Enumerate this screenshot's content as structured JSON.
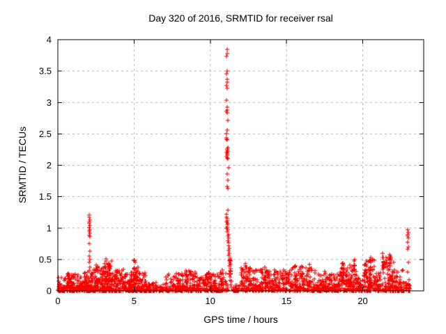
{
  "figure": {
    "title": "Day 320 of 2016, SRMTID for receiver rsal",
    "xlabel": "GPS time / hours",
    "ylabel": "SRMTID / TECUs"
  },
  "chart_data": {
    "type": "scatter",
    "title": "Day 320 of 2016, SRMTID for receiver rsal",
    "xlabel": "GPS time / hours",
    "ylabel": "SRMTID / TECUs",
    "xlim": [
      0,
      24
    ],
    "ylim": [
      0,
      4
    ],
    "xticks": [
      {
        "v": 0,
        "label": "0"
      },
      {
        "v": 5,
        "label": "5"
      },
      {
        "v": 10,
        "label": "10"
      },
      {
        "v": 15,
        "label": "15"
      },
      {
        "v": 20,
        "label": "20"
      }
    ],
    "yticks": [
      {
        "v": 0,
        "label": "0"
      },
      {
        "v": 0.5,
        "label": "0.5"
      },
      {
        "v": 1,
        "label": "1"
      },
      {
        "v": 1.5,
        "label": "1.5"
      },
      {
        "v": 2,
        "label": "2"
      },
      {
        "v": 2.5,
        "label": "2.5"
      },
      {
        "v": 3,
        "label": "3"
      },
      {
        "v": 3.5,
        "label": "3.5"
      },
      {
        "v": 4,
        "label": "4"
      }
    ],
    "grid": true,
    "grid_color": "#b5b5b5",
    "border_color": "#000000",
    "marker": "plus",
    "marker_color": "#ff0000",
    "legend": "none",
    "series_name": "SRMTID",
    "data_end_hour": 23.1,
    "baseline_segments": [
      {
        "x0": 0.0,
        "x1": 0.6,
        "ymax": 0.22,
        "n": 70
      },
      {
        "x0": 0.6,
        "x1": 1.2,
        "ymax": 0.28,
        "n": 80
      },
      {
        "x0": 1.2,
        "x1": 1.9,
        "ymax": 0.3,
        "n": 90
      },
      {
        "x0": 1.9,
        "x1": 2.35,
        "ymax": 0.35,
        "n": 70
      },
      {
        "x0": 2.35,
        "x1": 2.95,
        "ymax": 0.42,
        "n": 85
      },
      {
        "x0": 2.95,
        "x1": 3.55,
        "ymax": 0.5,
        "n": 95
      },
      {
        "x0": 3.55,
        "x1": 4.35,
        "ymax": 0.38,
        "n": 95
      },
      {
        "x0": 4.35,
        "x1": 4.95,
        "ymax": 0.3,
        "n": 70
      },
      {
        "x0": 4.95,
        "x1": 5.25,
        "ymax": 0.4,
        "n": 45
      },
      {
        "x0": 5.25,
        "x1": 5.75,
        "ymax": 0.32,
        "n": 55
      },
      {
        "x0": 5.75,
        "x1": 6.45,
        "ymax": 0.14,
        "n": 50
      },
      {
        "x0": 6.45,
        "x1": 7.05,
        "ymax": 0.1,
        "n": 35
      },
      {
        "x0": 7.05,
        "x1": 8.05,
        "ymax": 0.28,
        "n": 90
      },
      {
        "x0": 8.05,
        "x1": 9.05,
        "ymax": 0.32,
        "n": 95
      },
      {
        "x0": 9.05,
        "x1": 9.65,
        "ymax": 0.22,
        "n": 50
      },
      {
        "x0": 9.65,
        "x1": 10.65,
        "ymax": 0.3,
        "n": 110
      },
      {
        "x0": 10.65,
        "x1": 11.15,
        "ymax": 0.35,
        "n": 45
      },
      {
        "x0": 11.45,
        "x1": 12.0,
        "ymax": 0.1,
        "n": 25
      },
      {
        "x0": 12.0,
        "x1": 13.05,
        "ymax": 0.38,
        "n": 100
      },
      {
        "x0": 13.05,
        "x1": 14.25,
        "ymax": 0.36,
        "n": 110
      },
      {
        "x0": 14.25,
        "x1": 15.35,
        "ymax": 0.32,
        "n": 95
      },
      {
        "x0": 15.35,
        "x1": 16.75,
        "ymax": 0.4,
        "n": 120
      },
      {
        "x0": 16.75,
        "x1": 17.65,
        "ymax": 0.32,
        "n": 80
      },
      {
        "x0": 17.65,
        "x1": 18.45,
        "ymax": 0.28,
        "n": 70
      },
      {
        "x0": 18.45,
        "x1": 19.65,
        "ymax": 0.45,
        "n": 110
      },
      {
        "x0": 19.65,
        "x1": 20.05,
        "ymax": 0.22,
        "n": 30
      },
      {
        "x0": 20.05,
        "x1": 20.75,
        "ymax": 0.5,
        "n": 75
      },
      {
        "x0": 20.75,
        "x1": 21.25,
        "ymax": 0.32,
        "n": 50
      },
      {
        "x0": 21.25,
        "x1": 22.05,
        "ymax": 0.55,
        "n": 85
      },
      {
        "x0": 22.05,
        "x1": 22.65,
        "ymax": 0.35,
        "n": 55
      },
      {
        "x0": 22.65,
        "x1": 23.1,
        "ymax": 0.15,
        "n": 25
      }
    ],
    "streaks": [
      {
        "x": 0.75,
        "ytop": 0.3,
        "n": 7
      },
      {
        "x": 2.55,
        "ytop": 0.4,
        "n": 8
      },
      {
        "x": 3.15,
        "ytop": 0.55,
        "n": 12
      },
      {
        "x": 3.35,
        "ytop": 0.46,
        "n": 10
      },
      {
        "x": 5.02,
        "ytop": 0.5,
        "n": 14
      },
      {
        "x": 8.45,
        "ytop": 0.34,
        "n": 8
      },
      {
        "x": 9.85,
        "ytop": 0.3,
        "n": 7
      },
      {
        "x": 11.3,
        "ytop": 0.55,
        "n": 10
      },
      {
        "x": 12.35,
        "ytop": 0.45,
        "n": 10
      },
      {
        "x": 12.6,
        "ytop": 0.4,
        "n": 8
      },
      {
        "x": 13.6,
        "ytop": 0.38,
        "n": 8
      },
      {
        "x": 14.75,
        "ytop": 0.36,
        "n": 8
      },
      {
        "x": 15.6,
        "ytop": 0.42,
        "n": 9
      },
      {
        "x": 16.5,
        "ytop": 0.42,
        "n": 9
      },
      {
        "x": 18.7,
        "ytop": 0.46,
        "n": 10
      },
      {
        "x": 19.45,
        "ytop": 0.52,
        "n": 12
      },
      {
        "x": 20.15,
        "ytop": 0.48,
        "n": 10
      },
      {
        "x": 20.5,
        "ytop": 0.55,
        "n": 12
      },
      {
        "x": 21.35,
        "ytop": 0.62,
        "n": 12
      },
      {
        "x": 21.8,
        "ytop": 0.58,
        "n": 10
      }
    ],
    "spike_points": [
      [
        11.12,
        3.85
      ],
      [
        11.1,
        3.78
      ],
      [
        11.08,
        3.73
      ],
      [
        11.1,
        3.5
      ],
      [
        11.08,
        3.46
      ],
      [
        11.12,
        3.37
      ],
      [
        11.1,
        3.32
      ],
      [
        11.08,
        3.27
      ],
      [
        11.1,
        3.22
      ],
      [
        11.06,
        3.04
      ],
      [
        11.1,
        2.92
      ],
      [
        11.12,
        2.88
      ],
      [
        11.08,
        2.86
      ],
      [
        11.1,
        2.84
      ],
      [
        11.14,
        2.72
      ],
      [
        11.1,
        2.56
      ],
      [
        11.06,
        2.5
      ],
      [
        11.08,
        2.44
      ],
      [
        11.06,
        2.42
      ],
      [
        11.1,
        2.4
      ],
      [
        11.16,
        2.28
      ],
      [
        11.12,
        2.26
      ],
      [
        11.1,
        2.24
      ],
      [
        11.14,
        2.22
      ],
      [
        11.08,
        2.2
      ],
      [
        11.12,
        2.18
      ],
      [
        11.1,
        2.16
      ],
      [
        11.06,
        2.14
      ],
      [
        11.1,
        2.12
      ],
      [
        11.14,
        2.1
      ],
      [
        11.18,
        1.96
      ],
      [
        11.12,
        1.86
      ],
      [
        11.16,
        1.76
      ],
      [
        11.12,
        1.66
      ],
      [
        11.14,
        1.63
      ],
      [
        11.16,
        1.28
      ],
      [
        11.05,
        1.22
      ],
      [
        11.08,
        1.18
      ],
      [
        11.12,
        1.15
      ],
      [
        11.1,
        1.12
      ],
      [
        11.06,
        1.1
      ],
      [
        11.14,
        1.08
      ],
      [
        11.1,
        1.05
      ],
      [
        11.12,
        1.02
      ],
      [
        11.08,
        1.0
      ],
      [
        11.16,
        0.97
      ],
      [
        11.12,
        0.94
      ],
      [
        11.18,
        0.9
      ],
      [
        11.14,
        0.87
      ],
      [
        11.2,
        0.84
      ],
      [
        11.16,
        0.8
      ],
      [
        11.22,
        0.76
      ],
      [
        11.18,
        0.72
      ],
      [
        11.24,
        0.68
      ],
      [
        11.2,
        0.64
      ],
      [
        11.26,
        0.6
      ],
      [
        11.22,
        0.56
      ],
      [
        11.28,
        0.52
      ],
      [
        11.24,
        0.48
      ],
      [
        11.3,
        0.44
      ],
      [
        11.26,
        0.4
      ],
      [
        11.32,
        0.36
      ],
      [
        11.28,
        0.32
      ],
      [
        11.34,
        0.28
      ],
      [
        11.3,
        0.22
      ],
      [
        11.36,
        0.16
      ],
      [
        11.32,
        0.1
      ],
      [
        11.38,
        0.05
      ]
    ],
    "burst_2h_points": [
      [
        2.04,
        1.21
      ],
      [
        2.06,
        1.17
      ],
      [
        2.08,
        1.13
      ],
      [
        2.05,
        1.1
      ],
      [
        2.07,
        1.07
      ],
      [
        2.09,
        1.04
      ],
      [
        2.06,
        1.01
      ],
      [
        2.08,
        0.98
      ],
      [
        2.05,
        0.95
      ],
      [
        2.09,
        0.92
      ],
      [
        2.07,
        0.89
      ],
      [
        2.1,
        0.86
      ],
      [
        2.06,
        0.75
      ],
      [
        2.08,
        0.63
      ],
      [
        2.05,
        0.55
      ],
      [
        2.09,
        0.5
      ],
      [
        2.07,
        0.45
      ],
      [
        2.1,
        0.38
      ],
      [
        2.04,
        0.32
      ]
    ],
    "burst_23h_points": [
      [
        22.96,
        0.97
      ],
      [
        22.98,
        0.93
      ],
      [
        22.95,
        0.9
      ],
      [
        22.97,
        0.87
      ],
      [
        22.99,
        0.84
      ],
      [
        22.96,
        0.78
      ],
      [
        22.98,
        0.7
      ],
      [
        22.95,
        0.66
      ],
      [
        23.0,
        0.45
      ],
      [
        22.97,
        0.3
      ],
      [
        23.02,
        0.18
      ],
      [
        22.99,
        0.1
      ],
      [
        23.05,
        0.06
      ]
    ]
  }
}
